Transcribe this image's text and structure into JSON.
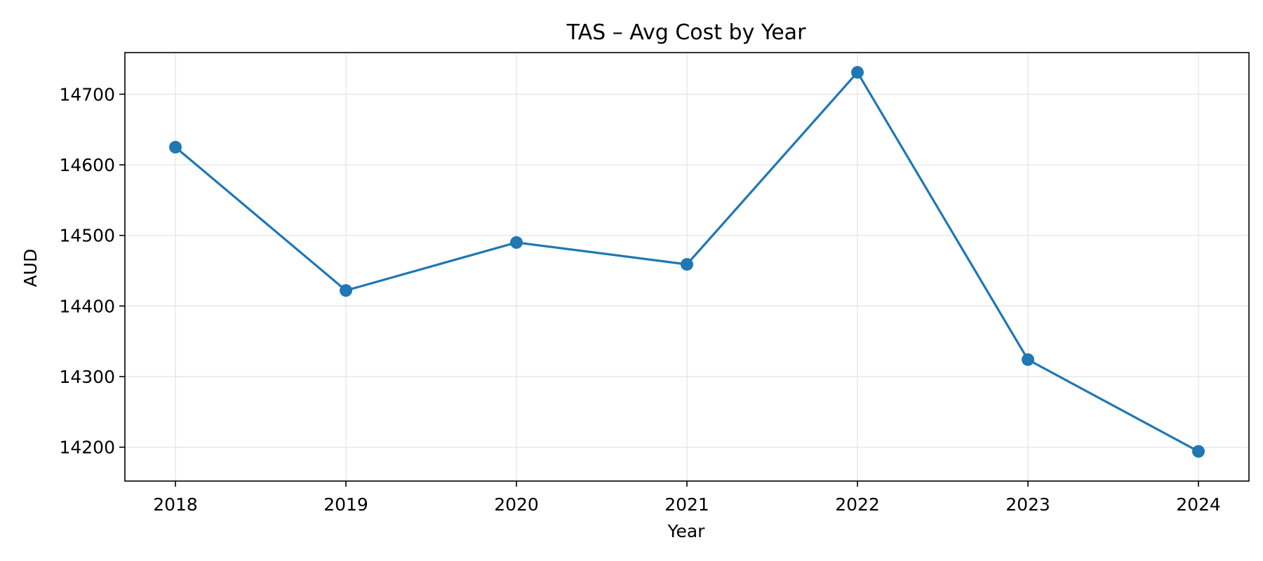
{
  "chart_data": {
    "type": "line",
    "title": "TAS – Avg Cost by Year",
    "xlabel": "Year",
    "ylabel": "AUD",
    "x": [
      "2018",
      "2019",
      "2020",
      "2021",
      "2022",
      "2023",
      "2024"
    ],
    "series": [
      {
        "values": [
          14625,
          14422,
          14490,
          14459,
          14731,
          14324,
          14194
        ],
        "color": "#1f77b4",
        "marker": "circle"
      }
    ],
    "yticks": [
      14200,
      14300,
      14400,
      14500,
      14600,
      14700
    ],
    "ylim": [
      14152,
      14759
    ],
    "grid": true,
    "legend": "none"
  }
}
